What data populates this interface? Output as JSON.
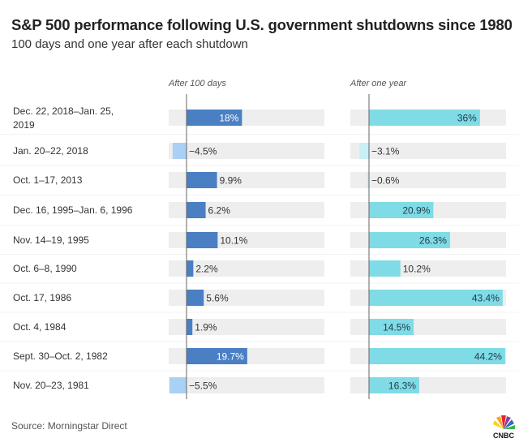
{
  "chart_data": {
    "type": "bar",
    "orientation": "horizontal",
    "title": "S&P 500 performance following U.S. government shutdowns since 1980",
    "subtitle": "100 days and one year after each shutdown",
    "categories": [
      "Dec. 22, 2018–Jan. 25, 2019",
      "Jan. 20–22, 2018",
      "Oct. 1–17, 2013",
      "Dec. 16, 1995–Jan. 6, 1996",
      "Nov. 14–19, 1995",
      "Oct. 6–8, 1990",
      "Oct. 17, 1986",
      "Oct. 4, 1984",
      "Sept. 30–Oct. 2, 1982",
      "Nov. 20–23, 1981"
    ],
    "series": [
      {
        "name": "After 100 days",
        "values": [
          18,
          -4.5,
          9.9,
          6.2,
          10.1,
          2.2,
          5.6,
          1.9,
          19.7,
          -5.5
        ],
        "labels": [
          "18%",
          "−4.5%",
          "9.9%",
          "6.2%",
          "10.1%",
          "2.2%",
          "5.6%",
          "1.9%",
          "19.7%",
          "−5.5%"
        ],
        "color": "#4a7fc4",
        "negative_color": "#a9d0f5"
      },
      {
        "name": "After one year",
        "values": [
          36,
          -3.1,
          -0.6,
          20.9,
          26.3,
          10.2,
          43.4,
          14.5,
          44.2,
          16.3
        ],
        "labels": [
          "36%",
          "−3.1%",
          "−0.6%",
          "20.9%",
          "26.3%",
          "10.2%",
          "43.4%",
          "14.5%",
          "44.2%",
          "16.3%"
        ],
        "color": "#7fdbe6",
        "negative_color": "#c8eff3"
      }
    ],
    "track_color": "#eeeeee",
    "grid": false,
    "legend": "none"
  },
  "source": "Source: Morningstar Direct",
  "logo_text": "CNBC"
}
